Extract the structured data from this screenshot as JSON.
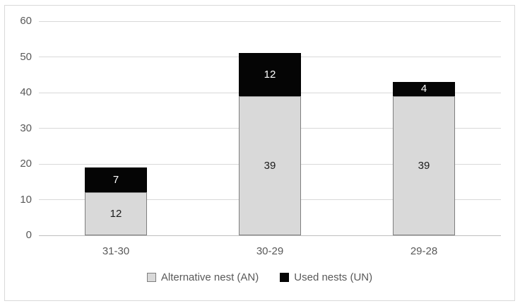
{
  "figure": {
    "background": "#ffffff",
    "border_color": "#d9d9d9"
  },
  "chart_data": {
    "type": "bar",
    "stacked": true,
    "title": "",
    "xlabel": "",
    "ylabel": "",
    "categories": [
      "31-30",
      "30-29",
      "29-28"
    ],
    "series": [
      {
        "name": "Alternative nest (AN)",
        "values": [
          12,
          39,
          39
        ],
        "fill": "#d9d9d9",
        "border": "#7f7f7f",
        "label_color": "#1a1a1a",
        "swatch": "gray-square"
      },
      {
        "name": "Used nests (UN)",
        "values": [
          7,
          12,
          4
        ],
        "fill": "#050505",
        "border": "#000000",
        "label_color": "#ffffff",
        "swatch": "black-square"
      }
    ],
    "stack_totals": [
      19,
      51,
      43
    ],
    "ylim": [
      0,
      60
    ],
    "yticks": [
      0,
      10,
      20,
      30,
      40,
      50,
      60
    ],
    "grid": true,
    "gridline_color": "#d9d9d9",
    "axis_line_color": "#bfbfbf",
    "tick_label_color": "#595959",
    "legend_position": "bottom",
    "legend_text_color": "#595959"
  }
}
